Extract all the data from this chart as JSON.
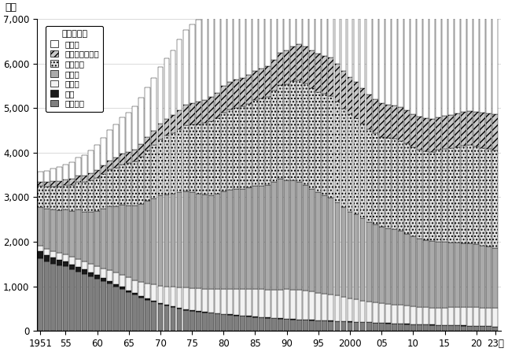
{
  "ylabel": "万人",
  "years": [
    1951,
    1952,
    1953,
    1954,
    1955,
    1956,
    1957,
    1958,
    1959,
    1960,
    1961,
    1962,
    1963,
    1964,
    1965,
    1966,
    1967,
    1968,
    1969,
    1970,
    1971,
    1972,
    1973,
    1974,
    1975,
    1976,
    1977,
    1978,
    1979,
    1980,
    1981,
    1982,
    1983,
    1984,
    1985,
    1986,
    1987,
    1988,
    1989,
    1990,
    1991,
    1992,
    1993,
    1994,
    1995,
    1996,
    1997,
    1998,
    1999,
    2000,
    2001,
    2002,
    2003,
    2004,
    2005,
    2006,
    2007,
    2008,
    2009,
    2010,
    2011,
    2012,
    2013,
    2014,
    2015,
    2016,
    2017,
    2018,
    2019,
    2020,
    2021,
    2022,
    2023
  ],
  "series": {
    "農林漁業": [
      1631,
      1560,
      1510,
      1470,
      1450,
      1380,
      1330,
      1280,
      1220,
      1175,
      1110,
      1060,
      1000,
      940,
      870,
      810,
      750,
      700,
      650,
      600,
      560,
      530,
      500,
      470,
      450,
      430,
      415,
      400,
      385,
      368,
      356,
      344,
      333,
      322,
      311,
      300,
      290,
      280,
      272,
      265,
      258,
      252,
      246,
      240,
      235,
      228,
      222,
      218,
      212,
      205,
      200,
      195,
      190,
      182,
      175,
      168,
      163,
      158,
      152,
      147,
      143,
      138,
      133,
      129,
      125,
      122,
      119,
      116,
      112,
      107,
      103,
      100,
      97
    ],
    "鉱業": [
      155,
      145,
      135,
      125,
      115,
      110,
      105,
      98,
      92,
      82,
      72,
      62,
      52,
      46,
      42,
      36,
      32,
      28,
      26,
      22,
      20,
      18,
      17,
      16,
      15,
      14,
      13,
      12,
      11,
      10,
      9,
      9,
      8,
      8,
      7,
      7,
      6,
      6,
      5,
      5,
      5,
      4,
      4,
      4,
      3,
      3,
      3,
      3,
      3,
      2,
      2,
      2,
      2,
      2,
      2,
      2,
      2,
      2,
      2,
      2,
      2,
      2,
      2,
      2,
      2,
      2,
      2,
      2,
      2,
      2,
      2,
      2,
      2
    ],
    "建設業": [
      120,
      130,
      140,
      150,
      160,
      165,
      170,
      180,
      190,
      200,
      215,
      235,
      250,
      270,
      285,
      295,
      310,
      330,
      360,
      385,
      410,
      435,
      455,
      480,
      495,
      505,
      515,
      530,
      545,
      565,
      580,
      590,
      600,
      610,
      620,
      625,
      630,
      640,
      650,
      660,
      665,
      660,
      655,
      640,
      620,
      605,
      590,
      570,
      545,
      520,
      500,
      482,
      462,
      450,
      438,
      430,
      425,
      420,
      410,
      400,
      390,
      385,
      382,
      390,
      395,
      400,
      403,
      408,
      413,
      415,
      413,
      410,
      407
    ],
    "製造業": [
      870,
      900,
      935,
      960,
      990,
      1040,
      1110,
      1120,
      1170,
      1230,
      1340,
      1440,
      1490,
      1570,
      1610,
      1670,
      1760,
      1860,
      1940,
      2030,
      2070,
      2090,
      2140,
      2170,
      2150,
      2130,
      2110,
      2100,
      2130,
      2190,
      2220,
      2240,
      2240,
      2270,
      2310,
      2320,
      2340,
      2410,
      2480,
      2440,
      2450,
      2430,
      2370,
      2300,
      2250,
      2210,
      2170,
      2090,
      2010,
      1950,
      1910,
      1848,
      1795,
      1750,
      1715,
      1700,
      1694,
      1658,
      1620,
      1570,
      1540,
      1510,
      1492,
      1480,
      1470,
      1460,
      1451,
      1440,
      1430,
      1420,
      1400,
      1380,
      1360
    ],
    "卸売小売": [
      480,
      500,
      520,
      540,
      560,
      585,
      625,
      658,
      698,
      740,
      780,
      820,
      868,
      908,
      960,
      998,
      1058,
      1128,
      1190,
      1268,
      1318,
      1368,
      1418,
      1478,
      1518,
      1558,
      1608,
      1660,
      1710,
      1768,
      1808,
      1828,
      1858,
      1888,
      1928,
      1958,
      1988,
      2048,
      2108,
      2168,
      2218,
      2278,
      2278,
      2268,
      2258,
      2268,
      2278,
      2258,
      2218,
      2188,
      2158,
      2118,
      2078,
      2058,
      2028,
      2028,
      2028,
      2028,
      2018,
      2008,
      1998,
      1998,
      2008,
      2058,
      2088,
      2118,
      2148,
      2188,
      2208,
      2188,
      2188,
      2188,
      2188
    ],
    "金融保険不動産": [
      95,
      105,
      115,
      120,
      125,
      135,
      145,
      155,
      170,
      185,
      196,
      210,
      224,
      238,
      252,
      266,
      284,
      304,
      328,
      352,
      372,
      396,
      424,
      462,
      482,
      502,
      526,
      546,
      566,
      590,
      614,
      628,
      638,
      652,
      666,
      676,
      690,
      706,
      726,
      754,
      782,
      812,
      832,
      842,
      852,
      862,
      872,
      862,
      848,
      832,
      812,
      794,
      772,
      762,
      752,
      752,
      752,
      752,
      748,
      744,
      740,
      736,
      736,
      736,
      740,
      744,
      752,
      760,
      768,
      776,
      784,
      792,
      800
    ],
    "その他": [
      220,
      250,
      280,
      308,
      335,
      368,
      408,
      450,
      502,
      562,
      622,
      690,
      748,
      818,
      886,
      958,
      1038,
      1108,
      1188,
      1270,
      1372,
      1464,
      1582,
      1682,
      1762,
      1842,
      1934,
      2012,
      2092,
      2174,
      2238,
      2298,
      2360,
      2402,
      2452,
      2512,
      2574,
      2646,
      2728,
      2830,
      2912,
      2974,
      3044,
      3096,
      3142,
      3184,
      3238,
      3282,
      3326,
      3350,
      3372,
      3374,
      3376,
      3390,
      3402,
      3424,
      3446,
      3468,
      3470,
      3476,
      3480,
      3512,
      3562,
      3612,
      3660,
      3710,
      3762,
      3812,
      3862,
      3882,
      3930,
      3960,
      3980
    ]
  },
  "colors": {
    "農林漁業": "#7f7f7f",
    "鉱業": "#1a1a1a",
    "建設業": "#f2f2f2",
    "製造業": "#aaaaaa",
    "卸売小売": "#e0e0e0",
    "金融保険不動産": "#c8c8c8",
    "その他": "#ffffff"
  },
  "hatches": {
    "農林漁業": "",
    "鉱業": "",
    "建設業": "",
    "製造業": "",
    "卸売小売": "....",
    "金融保険不動産": "////",
    "その他": ""
  },
  "yticks": [
    0,
    1000,
    2000,
    3000,
    4000,
    5000,
    6000,
    7000
  ],
  "xtick_labels": [
    "1951",
    "55",
    "60",
    "65",
    "70",
    "75",
    "80",
    "85",
    "90",
    "95",
    "2000",
    "05",
    "10",
    "15",
    "20",
    "23年"
  ],
  "xtick_positions": [
    1951,
    1955,
    1960,
    1965,
    1970,
    1975,
    1980,
    1985,
    1990,
    1995,
    2000,
    2005,
    2010,
    2015,
    2020,
    2023
  ],
  "legend_title": "上から順に",
  "legend_order": [
    "その他",
    "金融保険不動産",
    "卸売小売",
    "製造業",
    "建設業",
    "鉱業",
    "農林漁業"
  ],
  "ylim": [
    0,
    7000
  ],
  "xlim": [
    1950.5,
    2023.9
  ],
  "bar_width": 0.85
}
